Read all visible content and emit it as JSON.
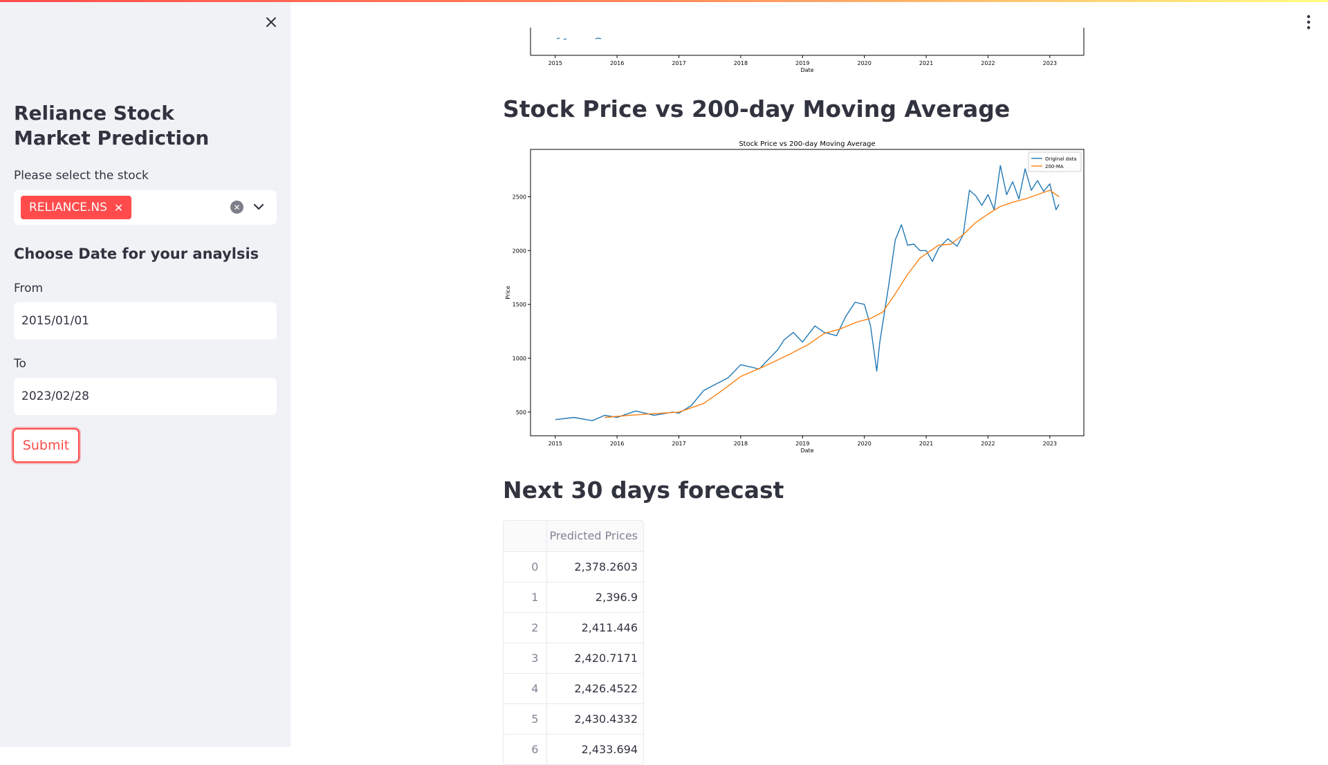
{
  "sidebar": {
    "title": "Reliance Stock Market Prediction",
    "stock_label": "Please select the stock",
    "selected_stock": "RELIANCE.NS",
    "date_heading": "Choose Date for your anaylsis",
    "from_label": "From",
    "from_value": "2015/01/01",
    "to_label": "To",
    "to_value": "2023/02/28",
    "submit_label": "Submit"
  },
  "main": {
    "ma_heading": "Stock Price vs 200-day Moving Average",
    "forecast_heading": "Next 30 days forecast",
    "table": {
      "header": "Predicted Prices",
      "rows": [
        {
          "index": "0",
          "value": "2,378.2603"
        },
        {
          "index": "1",
          "value": "2,396.9"
        },
        {
          "index": "2",
          "value": "2,411.446"
        },
        {
          "index": "3",
          "value": "2,420.7171"
        },
        {
          "index": "4",
          "value": "2,426.4522"
        },
        {
          "index": "5",
          "value": "2,430.4332"
        },
        {
          "index": "6",
          "value": "2,433.694"
        }
      ]
    }
  },
  "chart_data": [
    {
      "type": "line",
      "xlabel": "Date",
      "x_ticks": [
        "2015",
        "2016",
        "2017",
        "2018",
        "2019",
        "2020",
        "2021",
        "2022",
        "2023"
      ]
    },
    {
      "type": "line",
      "title": "Stock Price vs 200-day Moving Average",
      "xlabel": "Date",
      "ylabel": "Price",
      "x_ticks": [
        "2015",
        "2016",
        "2017",
        "2018",
        "2019",
        "2020",
        "2021",
        "2022",
        "2023"
      ],
      "y_ticks": [
        500,
        1000,
        1500,
        2000,
        2500
      ],
      "xlim": [
        2014.6,
        2023.55
      ],
      "ylim": [
        280,
        2940
      ],
      "legend_position": "top-right",
      "series": [
        {
          "name": "Original data",
          "color": "#1f77b4",
          "x": [
            2015.0,
            2015.3,
            2015.6,
            2015.8,
            2016.0,
            2016.3,
            2016.6,
            2016.9,
            2017.0,
            2017.2,
            2017.4,
            2017.6,
            2017.8,
            2018.0,
            2018.3,
            2018.6,
            2018.7,
            2018.85,
            2019.0,
            2019.2,
            2019.35,
            2019.55,
            2019.7,
            2019.85,
            2020.0,
            2020.1,
            2020.2,
            2020.25,
            2020.4,
            2020.5,
            2020.6,
            2020.7,
            2020.8,
            2020.9,
            2021.0,
            2021.1,
            2021.2,
            2021.35,
            2021.5,
            2021.6,
            2021.7,
            2021.8,
            2021.9,
            2022.0,
            2022.1,
            2022.2,
            2022.3,
            2022.4,
            2022.5,
            2022.6,
            2022.7,
            2022.8,
            2022.9,
            2023.0,
            2023.1,
            2023.15
          ],
          "y": [
            430,
            450,
            420,
            470,
            450,
            510,
            470,
            500,
            490,
            560,
            700,
            760,
            820,
            940,
            900,
            1080,
            1170,
            1240,
            1150,
            1300,
            1240,
            1210,
            1390,
            1520,
            1500,
            1300,
            880,
            1150,
            1700,
            2100,
            2240,
            2050,
            2060,
            2000,
            2000,
            1900,
            2020,
            2110,
            2040,
            2150,
            2560,
            2510,
            2420,
            2520,
            2380,
            2790,
            2520,
            2640,
            2480,
            2760,
            2560,
            2650,
            2550,
            2620,
            2380,
            2430
          ]
        },
        {
          "name": "200-MA",
          "color": "#ff7f0e",
          "x": [
            2015.8,
            2016.2,
            2016.6,
            2017.0,
            2017.4,
            2017.7,
            2018.0,
            2018.4,
            2018.8,
            2019.1,
            2019.35,
            2019.6,
            2019.9,
            2020.1,
            2020.3,
            2020.5,
            2020.7,
            2020.9,
            2021.2,
            2021.4,
            2021.6,
            2021.8,
            2022.0,
            2022.2,
            2022.4,
            2022.6,
            2022.8,
            2023.0,
            2023.15
          ],
          "y": [
            450,
            470,
            485,
            500,
            580,
            700,
            830,
            930,
            1040,
            1130,
            1230,
            1270,
            1340,
            1370,
            1430,
            1600,
            1780,
            1930,
            2050,
            2060,
            2150,
            2260,
            2340,
            2410,
            2450,
            2480,
            2520,
            2560,
            2500
          ]
        }
      ]
    }
  ]
}
